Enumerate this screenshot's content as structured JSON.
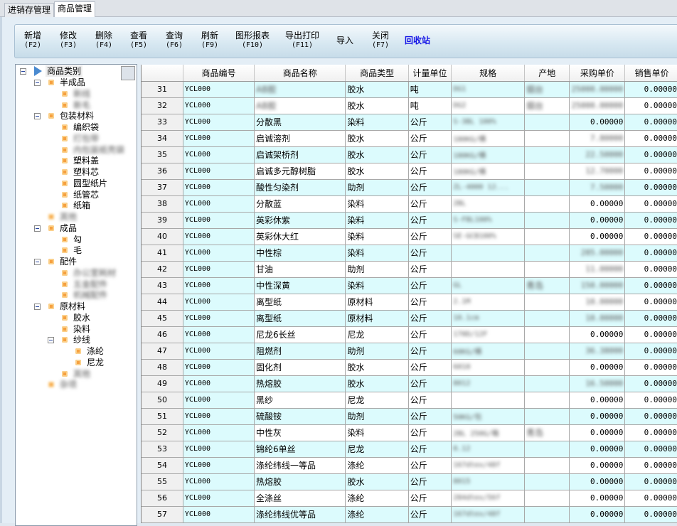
{
  "tabs": [
    {
      "label": "进销存管理"
    },
    {
      "label": "商品管理",
      "active": true
    }
  ],
  "toolbar": [
    {
      "label": "新增",
      "key": "(F2)"
    },
    {
      "label": "修改",
      "key": "(F3)"
    },
    {
      "label": "删除",
      "key": "(F4)"
    },
    {
      "label": "查看",
      "key": "(F5)"
    },
    {
      "label": "查询",
      "key": "(F6)"
    },
    {
      "label": "刷新",
      "key": "(F9)"
    },
    {
      "label": "图形报表",
      "key": "(F10)"
    },
    {
      "label": "导出打印",
      "key": "(F11)"
    },
    {
      "label": "导入",
      "key": ""
    },
    {
      "label": "关闭",
      "key": "(F7)"
    },
    {
      "label": "回收站",
      "key": ""
    }
  ],
  "tree": {
    "root": "商品类别",
    "nodes": [
      {
        "label": "半成品",
        "level": 1,
        "expanded": true
      },
      {
        "label": "新线",
        "level": 2,
        "blurred": true
      },
      {
        "label": "新毛",
        "level": 2,
        "blurred": true
      },
      {
        "label": "包装材料",
        "level": 1,
        "expanded": true
      },
      {
        "label": "编织袋",
        "level": 2
      },
      {
        "label": "打包带",
        "level": 2,
        "blurred": true
      },
      {
        "label": "内包装纸壳袋",
        "level": 2,
        "blurred": true
      },
      {
        "label": "塑料盖",
        "level": 2
      },
      {
        "label": "塑料芯",
        "level": 2
      },
      {
        "label": "圆型纸片",
        "level": 2
      },
      {
        "label": "纸管芯",
        "level": 2
      },
      {
        "label": "纸箱",
        "level": 2
      },
      {
        "label": "其他",
        "level": 1,
        "blurred": true
      },
      {
        "label": "成品",
        "level": 1,
        "expanded": true
      },
      {
        "label": "勾",
        "level": 2
      },
      {
        "label": "毛",
        "level": 2
      },
      {
        "label": "配件",
        "level": 1,
        "expanded": true
      },
      {
        "label": "办公室耗材",
        "level": 2,
        "blurred": true
      },
      {
        "label": "五金配件",
        "level": 2,
        "blurred": true
      },
      {
        "label": "机械配件",
        "level": 2,
        "blurred": true
      },
      {
        "label": "原材料",
        "level": 1,
        "expanded": true
      },
      {
        "label": "胶水",
        "level": 2
      },
      {
        "label": "染料",
        "level": 2
      },
      {
        "label": "纱线",
        "level": 2,
        "expanded": true
      },
      {
        "label": "涤纶",
        "level": 3
      },
      {
        "label": "尼龙",
        "level": 3
      },
      {
        "label": "其他",
        "level": 2,
        "blurred": true
      },
      {
        "label": "杂项",
        "level": 1,
        "blurred": true
      }
    ]
  },
  "table": {
    "columns": [
      "",
      "商品编号",
      "商品名称",
      "商品类型",
      "计量单位",
      "规格",
      "产地",
      "采购单价",
      "销售单价"
    ],
    "rows": [
      [
        "31",
        "YCL000",
        "AB胶",
        "胶水",
        "吨",
        "DG1",
        "烟台",
        "25000.00000",
        "0.00000"
      ],
      [
        "32",
        "YCL000",
        "AB胶",
        "胶水",
        "吨",
        "DG2",
        "烟台",
        "25000.00000",
        "0.00000"
      ],
      [
        "33",
        "YCL000",
        "分散黑",
        "染料",
        "公斤",
        "S-3BL 100%",
        "",
        "0.00000",
        "0.00000"
      ],
      [
        "34",
        "YCL000",
        "启诚溶剂",
        "胶水",
        "公斤",
        "180KG/桶",
        "",
        "7.80000",
        "0.00000"
      ],
      [
        "35",
        "YCL000",
        "启诚架桥剂",
        "胶水",
        "公斤",
        "180KG/桶",
        "",
        "22.50000",
        "0.00000"
      ],
      [
        "36",
        "YCL000",
        "启诚多元醇树脂",
        "胶水",
        "公斤",
        "180KG/桶",
        "",
        "12.70000",
        "0.00000"
      ],
      [
        "37",
        "YCL000",
        "酸性匀染剂",
        "助剂",
        "公斤",
        "ZL-4000 12...",
        "",
        "7.50000",
        "0.00000"
      ],
      [
        "38",
        "YCL000",
        "分散蓝",
        "染料",
        "公斤",
        "2BL",
        "",
        "0.00000",
        "0.00000"
      ],
      [
        "39",
        "YCL000",
        "英彩休紫",
        "染料",
        "公斤",
        "S-FBL100%",
        "",
        "0.00000",
        "0.00000"
      ],
      [
        "40",
        "YCL000",
        "英彩休大红",
        "染料",
        "公斤",
        "SE-GCB100%",
        "",
        "0.00000",
        "0.00000"
      ],
      [
        "41",
        "YCL000",
        "中性棕",
        "染料",
        "公斤",
        "",
        "",
        "285.00000",
        "0.00000"
      ],
      [
        "42",
        "YCL000",
        "甘油",
        "助剂",
        "公斤",
        "",
        "",
        "11.00000",
        "0.00000"
      ],
      [
        "43",
        "YCL000",
        "中性深黄",
        "染料",
        "公斤",
        "GL",
        "青岛",
        "150.00000",
        "0.00000"
      ],
      [
        "44",
        "YCL000",
        "离型纸",
        "原材料",
        "公斤",
        "2.1M",
        "",
        "10.00000",
        "0.00000"
      ],
      [
        "45",
        "YCL000",
        "离型纸",
        "原材料",
        "公斤",
        "10.1cm",
        "",
        "10.00000",
        "0.00000"
      ],
      [
        "46",
        "YCL000",
        "尼龙6长丝",
        "尼龙",
        "公斤",
        "170D/12F",
        "",
        "0.00000",
        "0.00000"
      ],
      [
        "47",
        "YCL000",
        "阻燃剂",
        "助剂",
        "公斤",
        "60KG/桶",
        "",
        "36.38000",
        "0.00000"
      ],
      [
        "48",
        "YCL000",
        "固化剂",
        "胶水",
        "公斤",
        "6010",
        "",
        "0.00000",
        "0.00000"
      ],
      [
        "49",
        "YCL000",
        "热熔胶",
        "胶水",
        "公斤",
        "8012",
        "",
        "16.50000",
        "0.00000"
      ],
      [
        "50",
        "YCL000",
        "黑纱",
        "尼龙",
        "公斤",
        "",
        "",
        "0.00000",
        "0.00000"
      ],
      [
        "51",
        "YCL000",
        "硫酸铵",
        "助剂",
        "公斤",
        "50KG/包",
        "",
        "0.00000",
        "0.00000"
      ],
      [
        "52",
        "YCL000",
        "中性灰",
        "染料",
        "公斤",
        "2BL 250G/箱",
        "青岛",
        "0.00000",
        "0.00000"
      ],
      [
        "53",
        "YCL000",
        "锦纶6单丝",
        "尼龙",
        "公斤",
        "0.12",
        "",
        "0.00000",
        "0.00000"
      ],
      [
        "54",
        "YCL000",
        "涤纶纬线一等品",
        "涤纶",
        "公斤",
        "167dtex/48f",
        "",
        "0.00000",
        "0.00000"
      ],
      [
        "55",
        "YCL000",
        "热熔胶",
        "胶水",
        "公斤",
        "8015",
        "",
        "0.00000",
        "0.00000"
      ],
      [
        "56",
        "YCL000",
        "全涤丝",
        "涤纶",
        "公斤",
        "284dtex/56f",
        "",
        "0.00000",
        "0.00000"
      ],
      [
        "57",
        "YCL000",
        "涤纶纬线优等品",
        "涤纶",
        "公斤",
        "167dtex/48f",
        "",
        "0.00000",
        "0.00000"
      ]
    ],
    "blurred_columns": [
      2,
      5,
      6,
      7
    ]
  },
  "colors": {
    "row_highlight": "#dcfbfd",
    "recycle": "#1414e6",
    "node_icon": "#f5a040"
  }
}
